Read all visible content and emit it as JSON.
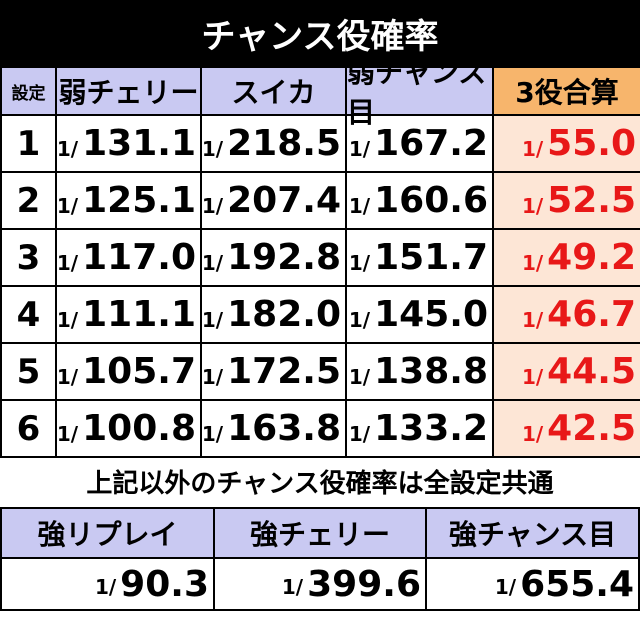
{
  "header": {
    "title": "チャンス役確率"
  },
  "table": {
    "columns": [
      "設定",
      "弱チェリー",
      "スイカ",
      "弱チャンス目",
      "3役合算"
    ],
    "rows": [
      [
        "1",
        "1/131.1",
        "1/218.5",
        "1/167.2",
        "1/55.0"
      ],
      [
        "2",
        "1/125.1",
        "1/207.4",
        "1/160.6",
        "1/52.5"
      ],
      [
        "3",
        "1/117.0",
        "1/192.8",
        "1/151.7",
        "1/49.2"
      ],
      [
        "4",
        "1/111.1",
        "1/182.0",
        "1/145.0",
        "1/46.7"
      ],
      [
        "5",
        "1/105.7",
        "1/172.5",
        "1/138.8",
        "1/44.5"
      ],
      [
        "6",
        "1/100.8",
        "1/163.8",
        "1/133.2",
        "1/42.5"
      ]
    ]
  },
  "note": "上記以外のチャンス役確率は全設定共通",
  "common_table": {
    "columns": [
      "強リプレイ",
      "強チェリー",
      "強チャンス目"
    ],
    "values": [
      "1/90.3",
      "1/399.6",
      "1/655.4"
    ]
  }
}
